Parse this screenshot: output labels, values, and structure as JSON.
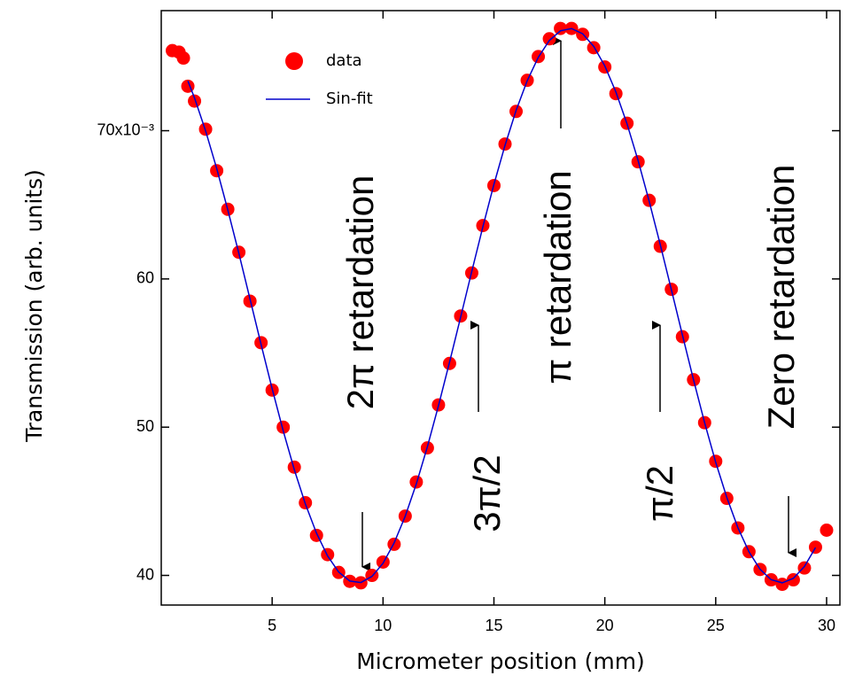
{
  "chart_data": {
    "type": "scatter",
    "xlabel": "Micrometer position (mm)",
    "ylabel": "Transmission (arb. units)",
    "xlim": [
      0,
      30.6
    ],
    "ylim": [
      38.0,
      78.1
    ],
    "xticks": [
      5,
      10,
      15,
      20,
      25,
      30
    ],
    "yticks": [
      40,
      50,
      60,
      {
        "value": 70,
        "label": "70x10⁻³"
      }
    ],
    "legend": "upper left",
    "series": [
      {
        "name": "data",
        "color": "#ff0000",
        "mode": "markers",
        "x": [
          0.5,
          0.8,
          1.0,
          1.2,
          1.5,
          2.0,
          2.5,
          3.0,
          3.5,
          4.0,
          4.5,
          5.0,
          5.5,
          6.0,
          6.5,
          7.0,
          7.5,
          8.0,
          8.5,
          9.0,
          9.5,
          10.0,
          10.5,
          11.0,
          11.5,
          12.0,
          12.5,
          13.0,
          13.5,
          14.0,
          14.5,
          15.0,
          15.5,
          16.0,
          16.5,
          17.0,
          17.5,
          18.0,
          18.5,
          19.0,
          19.5,
          20.0,
          20.5,
          21.0,
          21.5,
          22.0,
          22.5,
          23.0,
          23.5,
          24.0,
          24.5,
          25.0,
          25.5,
          26.0,
          26.5,
          27.0,
          27.5,
          28.0,
          28.5,
          29.0,
          29.5,
          30.0
        ],
        "values": [
          75.4,
          75.3,
          74.9,
          73.0,
          72.0,
          70.1,
          67.3,
          64.7,
          61.8,
          58.5,
          55.7,
          52.5,
          50.0,
          47.3,
          44.9,
          42.7,
          41.4,
          40.2,
          39.6,
          39.5,
          40.0,
          40.9,
          42.1,
          44.0,
          46.3,
          48.6,
          51.5,
          54.3,
          57.5,
          60.4,
          63.6,
          66.3,
          69.1,
          71.3,
          73.4,
          75.0,
          76.2,
          76.9,
          76.9,
          76.5,
          75.6,
          74.3,
          72.5,
          70.5,
          67.9,
          65.3,
          62.2,
          59.3,
          56.1,
          53.2,
          50.3,
          47.7,
          45.2,
          43.2,
          41.6,
          40.4,
          39.7,
          39.4,
          39.7,
          40.5,
          41.9,
          43.05
        ]
      },
      {
        "name": "Sin-fit",
        "color": "#0000cc",
        "mode": "line",
        "x": [
          1.2,
          1.5,
          2.0,
          2.5,
          3.0,
          3.5,
          4.0,
          4.5,
          5.0,
          5.5,
          6.0,
          6.5,
          7.0,
          7.5,
          8.0,
          8.5,
          9.0,
          9.5,
          10.0,
          10.5,
          11.0,
          11.5,
          12.0,
          12.5,
          13.0,
          13.5,
          14.0,
          14.5,
          15.0,
          15.5,
          16.0,
          16.5,
          17.0,
          17.5,
          18.0,
          18.5,
          19.0,
          19.5,
          20.0,
          20.5,
          21.0,
          21.5,
          22.0,
          22.5,
          23.0,
          23.5,
          24.0,
          24.5,
          25.0,
          25.5,
          26.0,
          26.5,
          27.0,
          27.5,
          28.0,
          28.5,
          29.0,
          29.5
        ],
        "values": [
          73.36,
          72.21,
          69.99,
          67.45,
          64.66,
          61.72,
          58.66,
          55.59,
          52.59,
          49.75,
          47.13,
          44.81,
          42.85,
          41.31,
          40.23,
          39.62,
          39.52,
          39.93,
          40.82,
          42.19,
          43.99,
          46.17,
          48.68,
          51.45,
          54.39,
          57.43,
          60.5,
          63.51,
          66.38,
          69.01,
          71.37,
          73.37,
          74.95,
          76.09,
          76.74,
          76.89,
          76.54,
          75.69,
          74.37,
          72.61,
          70.47,
          67.99,
          65.24,
          62.31,
          59.28,
          56.21,
          53.19,
          50.3,
          47.63,
          45.26,
          43.22,
          41.59,
          40.41,
          39.71,
          39.5,
          39.8,
          40.6,
          41.88
        ]
      }
    ],
    "annotations": [
      "2π retardation",
      "π retardation",
      "Zero retardation",
      "3π/2",
      "π/2"
    ]
  }
}
